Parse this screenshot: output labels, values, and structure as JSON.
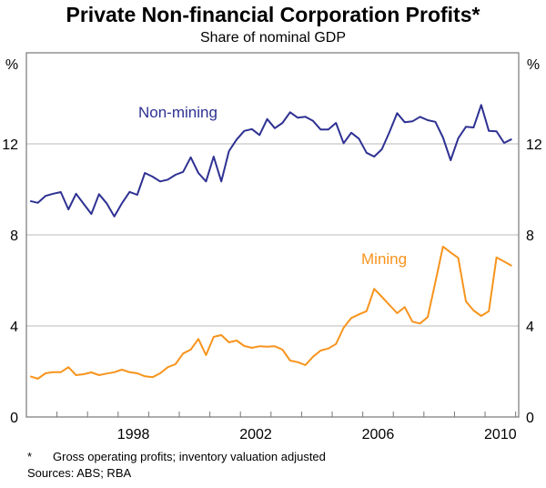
{
  "chart_data": {
    "type": "line",
    "title": "Private Non-financial Corporation Profits*",
    "subtitle": "Share of nominal GDP",
    "ylabel_left": "%",
    "ylabel_right": "%",
    "ylim": [
      0,
      16
    ],
    "yticks": [
      0,
      4,
      8,
      12
    ],
    "xlim": [
      1995,
      2011.1
    ],
    "xtick_labels": [
      "1998",
      "2002",
      "2006",
      "2010"
    ],
    "x_frequency": "quarterly",
    "x_start": "1995 Q1",
    "grid": true,
    "series": [
      {
        "name": "Non-mining",
        "color": "#2e3192",
        "values": [
          9.49,
          9.41,
          9.71,
          9.81,
          9.88,
          9.12,
          9.81,
          9.36,
          8.92,
          9.79,
          9.39,
          8.81,
          9.39,
          9.89,
          9.76,
          10.72,
          10.56,
          10.35,
          10.43,
          10.64,
          10.77,
          11.41,
          10.72,
          10.35,
          11.44,
          10.35,
          11.68,
          12.19,
          12.57,
          12.65,
          12.39,
          13.09,
          12.69,
          12.92,
          13.39,
          13.15,
          13.19,
          13.01,
          12.63,
          12.63,
          12.92,
          12.03,
          12.49,
          12.23,
          11.61,
          11.44,
          11.76,
          12.52,
          13.35,
          12.95,
          12.99,
          13.19,
          13.04,
          12.97,
          12.28,
          11.28,
          12.25,
          12.75,
          12.72,
          13.71,
          12.57,
          12.55,
          12.04,
          12.21
        ]
      },
      {
        "name": "Mining",
        "color": "#f7941d",
        "values": [
          1.79,
          1.68,
          1.92,
          1.97,
          1.97,
          2.19,
          1.84,
          1.88,
          1.96,
          1.84,
          1.91,
          1.97,
          2.08,
          1.97,
          1.92,
          1.79,
          1.75,
          1.92,
          2.19,
          2.32,
          2.79,
          2.96,
          3.43,
          2.72,
          3.52,
          3.6,
          3.28,
          3.36,
          3.12,
          3.04,
          3.11,
          3.09,
          3.11,
          2.96,
          2.48,
          2.41,
          2.28,
          2.65,
          2.92,
          3.01,
          3.21,
          3.92,
          4.35,
          4.51,
          4.65,
          5.63,
          5.28,
          4.92,
          4.56,
          4.83,
          4.19,
          4.11,
          4.39,
          5.92,
          7.49,
          7.23,
          6.99,
          5.08,
          4.68,
          4.44,
          4.65,
          7.01,
          6.83,
          6.64
        ]
      }
    ],
    "footnote_marker": "*",
    "footnote": "Gross operating profits; inventory valuation adjusted",
    "sources": "Sources: ABS; RBA"
  }
}
